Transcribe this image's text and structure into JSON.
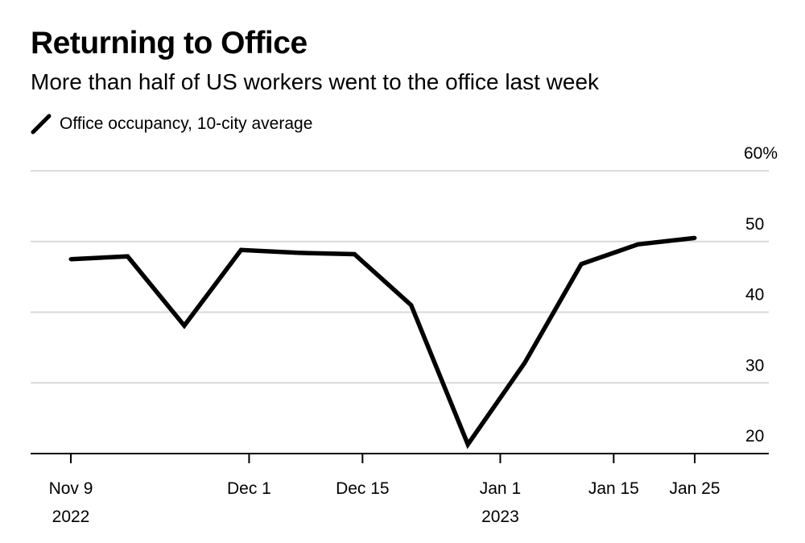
{
  "title": "Returning to Office",
  "subtitle": "More than half of US workers went to the office last week",
  "legend": {
    "label": "Office occupancy, 10-city average"
  },
  "colors": {
    "line": "#000000",
    "grid": "#d9d9d9",
    "axis": "#000000"
  },
  "chart_data": {
    "type": "line",
    "x": [
      "2022-11-09",
      "2022-11-16",
      "2022-11-23",
      "2022-11-30",
      "2022-12-07",
      "2022-12-14",
      "2022-12-21",
      "2022-12-28",
      "2023-01-04",
      "2023-01-11",
      "2023-01-18",
      "2023-01-25"
    ],
    "series": [
      {
        "name": "Office occupancy, 10-city average",
        "values": [
          47.5,
          47.9,
          38.1,
          48.8,
          48.4,
          48.2,
          41.0,
          21.3,
          32.8,
          46.8,
          49.6,
          50.5
        ]
      }
    ],
    "ylim": [
      20,
      60
    ],
    "y_ticks": [
      20,
      30,
      40,
      50,
      60
    ],
    "y_tick_labels": [
      "20",
      "30",
      "40",
      "50",
      "60%"
    ],
    "x_ticks": [
      {
        "date": "2022-11-09",
        "label": "Nov 9",
        "year": "2022"
      },
      {
        "date": "2022-12-01",
        "label": "Dec 1",
        "year": ""
      },
      {
        "date": "2022-12-15",
        "label": "Dec 15",
        "year": ""
      },
      {
        "date": "2023-01-01",
        "label": "Jan 1",
        "year": "2023"
      },
      {
        "date": "2023-01-15",
        "label": "Jan 15",
        "year": ""
      },
      {
        "date": "2023-01-25",
        "label": "Jan 25",
        "year": ""
      }
    ],
    "y_axis_position": "right",
    "grid": true,
    "legend_position": "top-left"
  }
}
